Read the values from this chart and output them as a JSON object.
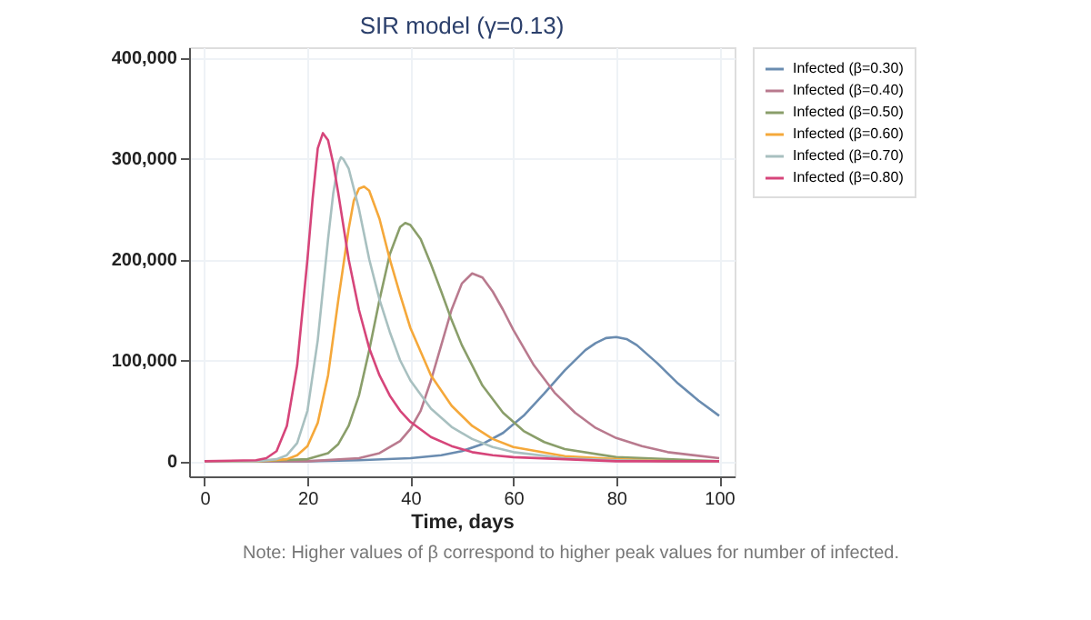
{
  "chart_data": {
    "type": "line",
    "title": "SIR model (γ=0.13)",
    "xlabel": "Time, days",
    "annotations": [
      "Note: Higher values of β correspond to higher peak values for number of infected."
    ],
    "xlim": [
      -3,
      103
    ],
    "xticks": [
      0,
      20,
      40,
      60,
      80,
      100
    ],
    "ylim": [
      -15000,
      410000
    ],
    "yticks": [
      {
        "value": 0,
        "label": "0"
      },
      {
        "value": 100000,
        "label": "100,000"
      },
      {
        "value": 200000,
        "label": "200,000"
      },
      {
        "value": 300000,
        "label": "300,000"
      },
      {
        "value": 400000,
        "label": "400,000"
      }
    ],
    "grid": true,
    "legend": "right",
    "marker": "none",
    "line_style": "solid",
    "series": [
      {
        "name": "Infected (β=0.30)",
        "color": "#6a8cb0",
        "x": [
          0,
          20,
          30,
          40,
          46,
          50,
          54,
          58,
          62,
          66,
          70,
          74,
          76,
          78,
          80,
          82,
          84,
          88,
          92,
          96,
          100
        ],
        "values": [
          0,
          0,
          1000,
          3000,
          6000,
          10000,
          17000,
          28000,
          45000,
          67000,
          90000,
          110000,
          117000,
          122000,
          123000,
          121000,
          115000,
          97000,
          77000,
          60000,
          45000
        ]
      },
      {
        "name": "Infected (β=0.40)",
        "color": "#b97a8e",
        "x": [
          0,
          20,
          30,
          34,
          38,
          40,
          42,
          44,
          46,
          48,
          50,
          52,
          54,
          56,
          58,
          60,
          64,
          68,
          72,
          76,
          80,
          85,
          90,
          100
        ],
        "values": [
          0,
          0,
          3000,
          8000,
          20000,
          32000,
          50000,
          80000,
          115000,
          150000,
          176000,
          186000,
          182000,
          168000,
          150000,
          130000,
          95000,
          68000,
          48000,
          33000,
          23000,
          15000,
          9000,
          3000
        ]
      },
      {
        "name": "Infected (β=0.50)",
        "color": "#8a9e6a",
        "x": [
          0,
          10,
          20,
          24,
          26,
          28,
          30,
          32,
          34,
          36,
          38,
          39,
          40,
          42,
          44,
          46,
          48,
          50,
          54,
          58,
          62,
          66,
          70,
          80,
          90,
          100
        ],
        "values": [
          0,
          0,
          2000,
          8000,
          17000,
          35000,
          65000,
          110000,
          160000,
          205000,
          232000,
          236000,
          234000,
          220000,
          195000,
          168000,
          140000,
          115000,
          75000,
          48000,
          30000,
          19000,
          12000,
          4000,
          2000,
          0
        ]
      },
      {
        "name": "Infected (β=0.60)",
        "color": "#f5a83a",
        "x": [
          0,
          10,
          16,
          18,
          20,
          22,
          24,
          26,
          28,
          29,
          30,
          31,
          32,
          34,
          36,
          38,
          40,
          44,
          48,
          52,
          56,
          60,
          70,
          80,
          90,
          100
        ],
        "values": [
          0,
          0,
          2000,
          6000,
          15000,
          38000,
          85000,
          160000,
          230000,
          258000,
          270000,
          272000,
          268000,
          240000,
          200000,
          165000,
          132000,
          85000,
          55000,
          35000,
          22000,
          14000,
          5000,
          2000,
          0,
          0
        ]
      },
      {
        "name": "Infected (β=0.70)",
        "color": "#a8c0c0",
        "x": [
          0,
          10,
          14,
          16,
          18,
          20,
          22,
          24,
          25,
          26,
          26.5,
          27,
          28,
          30,
          32,
          34,
          36,
          38,
          40,
          44,
          48,
          52,
          56,
          60,
          70,
          80,
          90,
          100
        ],
        "values": [
          0,
          0,
          2000,
          6000,
          18000,
          50000,
          120000,
          220000,
          265000,
          295000,
          301000,
          299000,
          290000,
          250000,
          200000,
          160000,
          128000,
          100000,
          80000,
          52000,
          34000,
          22000,
          14000,
          9000,
          3000,
          1000,
          0,
          0
        ]
      },
      {
        "name": "Infected (β=0.80)",
        "color": "#d6457a",
        "x": [
          0,
          10,
          12,
          14,
          16,
          18,
          20,
          21,
          22,
          23,
          24,
          25,
          26,
          28,
          30,
          32,
          34,
          36,
          38,
          40,
          44,
          48,
          52,
          56,
          60,
          70,
          80,
          90,
          100
        ],
        "values": [
          0,
          1000,
          3000,
          10000,
          35000,
          95000,
          200000,
          260000,
          310000,
          325000,
          318000,
          295000,
          265000,
          200000,
          150000,
          112000,
          85000,
          65000,
          50000,
          39000,
          24000,
          15000,
          9000,
          6000,
          4000,
          2000,
          0,
          0,
          0
        ]
      }
    ]
  }
}
